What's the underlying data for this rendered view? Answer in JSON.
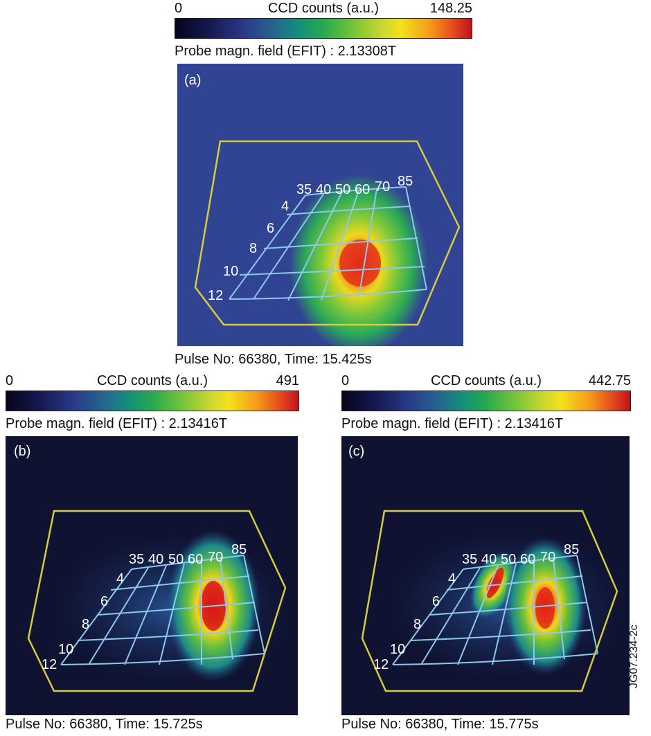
{
  "colors": {
    "boundary": "#d8cc3a",
    "grid": "#8ec8ec",
    "background_a": "#2e3f8e",
    "background_bc": "#0f1331"
  },
  "panels": [
    {
      "id": "a",
      "label": "(a)",
      "colorbar": {
        "min_label": "0",
        "title": "CCD counts (a.u.)",
        "max_label": "148.25"
      },
      "probe": "Probe magn. field (EFIT) : 2.13308T",
      "caption": "Pulse No: 66380, Time: 15.425s",
      "grid_labels": {
        "top": [
          "35",
          "40",
          "50",
          "60",
          "70",
          "85"
        ],
        "left": [
          "4",
          "6",
          "8",
          "10",
          "12"
        ]
      }
    },
    {
      "id": "b",
      "label": "(b)",
      "colorbar": {
        "min_label": "0",
        "title": "CCD counts (a.u.)",
        "max_label": "491"
      },
      "probe": "Probe magn. field (EFIT) : 2.13416T",
      "caption": "Pulse No: 66380, Time: 15.725s",
      "grid_labels": {
        "top": [
          "35",
          "40",
          "50",
          "60",
          "70",
          "85"
        ],
        "left": [
          "4",
          "6",
          "8",
          "10",
          "12"
        ]
      }
    },
    {
      "id": "c",
      "label": "(c)",
      "colorbar": {
        "min_label": "0",
        "title": "CCD counts (a.u.)",
        "max_label": "442.75"
      },
      "probe": "Probe magn. field (EFIT) : 2.13416T",
      "caption": "Pulse No: 66380, Time: 15.775s",
      "grid_labels": {
        "top": [
          "35",
          "40",
          "50",
          "60",
          "70",
          "85"
        ],
        "left": [
          "4",
          "6",
          "8",
          "10",
          "12"
        ]
      }
    }
  ],
  "figure_code": "JG07.234-2c"
}
